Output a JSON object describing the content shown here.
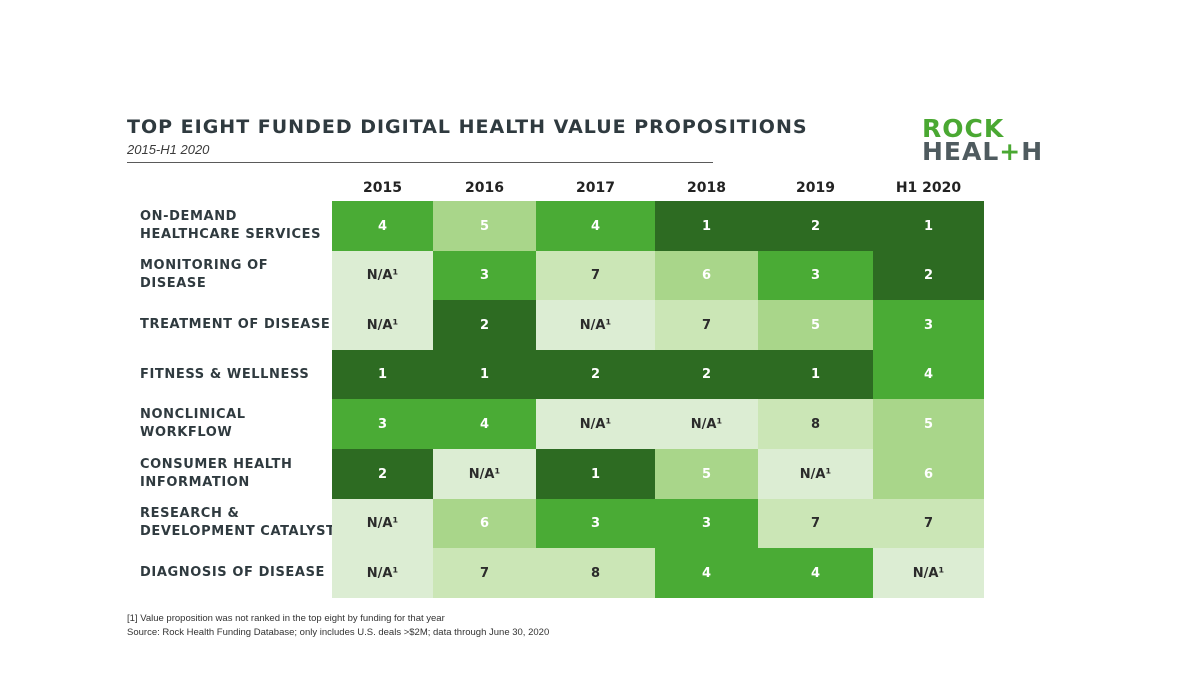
{
  "title": "TOP EIGHT FUNDED DIGITAL HEALTH VALUE PROPOSITIONS",
  "subtitle": "2015-H1 2020",
  "logo": {
    "line1": "ROCK",
    "line2_a": "HEAL",
    "line2_plus": "+",
    "line2_b": "H"
  },
  "chart_data": {
    "type": "heatmap",
    "columns": [
      "2015",
      "2016",
      "2017",
      "2018",
      "2019",
      "H1 2020"
    ],
    "rows": [
      {
        "label": "ON-DEMAND\nHEALTHCARE SERVICES",
        "values": [
          "4",
          "5",
          "4",
          "1",
          "2",
          "1"
        ]
      },
      {
        "label": "MONITORING OF\nDISEASE",
        "values": [
          "N/A¹",
          "3",
          "7",
          "6",
          "3",
          "2"
        ]
      },
      {
        "label": "TREATMENT OF DISEASE",
        "values": [
          "N/A¹",
          "2",
          "N/A¹",
          "7",
          "5",
          "3"
        ]
      },
      {
        "label": "FITNESS & WELLNESS",
        "values": [
          "1",
          "1",
          "2",
          "2",
          "1",
          "4"
        ]
      },
      {
        "label": "NONCLINICAL\nWORKFLOW",
        "values": [
          "3",
          "4",
          "N/A¹",
          "N/A¹",
          "8",
          "5"
        ]
      },
      {
        "label": "CONSUMER HEALTH\nINFORMATION",
        "values": [
          "2",
          "N/A¹",
          "1",
          "5",
          "N/A¹",
          "6"
        ]
      },
      {
        "label": "RESEARCH &\nDEVELOPMENT CATALYST",
        "values": [
          "N/A¹",
          "6",
          "3",
          "3",
          "7",
          "7"
        ]
      },
      {
        "label": "DIAGNOSIS OF DISEASE",
        "values": [
          "N/A¹",
          "7",
          "8",
          "4",
          "4",
          "N/A¹"
        ]
      }
    ],
    "color_scale": {
      "1": "#2d6b22",
      "2": "#2d6b22",
      "3": "#4aab35",
      "4": "#4aab35",
      "5": "#a9d68a",
      "6": "#a9d68a",
      "7": "#cbe6b6",
      "8": "#cbe6b6",
      "N/A¹": "#dcedd3"
    },
    "text_colors": {
      "dark": "#2b2b2b",
      "light": "#ffffff"
    }
  },
  "footnotes": {
    "note1": "[1] Value proposition was not ranked in the top eight by funding for that year",
    "source": "Source: Rock Health Funding Database; only includes U.S. deals >$2M; data through June 30, 2020"
  }
}
